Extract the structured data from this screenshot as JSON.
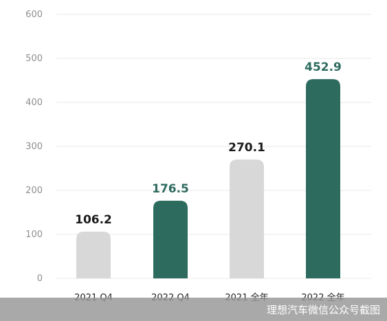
{
  "chart_data": {
    "type": "bar",
    "categories": [
      "2021 Q4",
      "2022 Q4",
      "2021 全年",
      "2022 全年"
    ],
    "values": [
      106.2,
      176.5,
      270.1,
      452.9
    ],
    "value_labels": [
      "106.2",
      "176.5",
      "270.1",
      "452.9"
    ],
    "bar_colors": [
      "#d8d8d8",
      "#2e6b5f",
      "#d8d8d8",
      "#2e6b5f"
    ],
    "label_colors": [
      "#1a1a1a",
      "#2e6b5f",
      "#1a1a1a",
      "#2e6b5f"
    ],
    "ylim": [
      0,
      600
    ],
    "yticks": [
      0,
      100,
      200,
      300,
      400,
      500,
      600
    ],
    "grid": true,
    "title": "",
    "xlabel": "",
    "ylabel": ""
  },
  "watermark": "理想汽车微信公众号截图"
}
